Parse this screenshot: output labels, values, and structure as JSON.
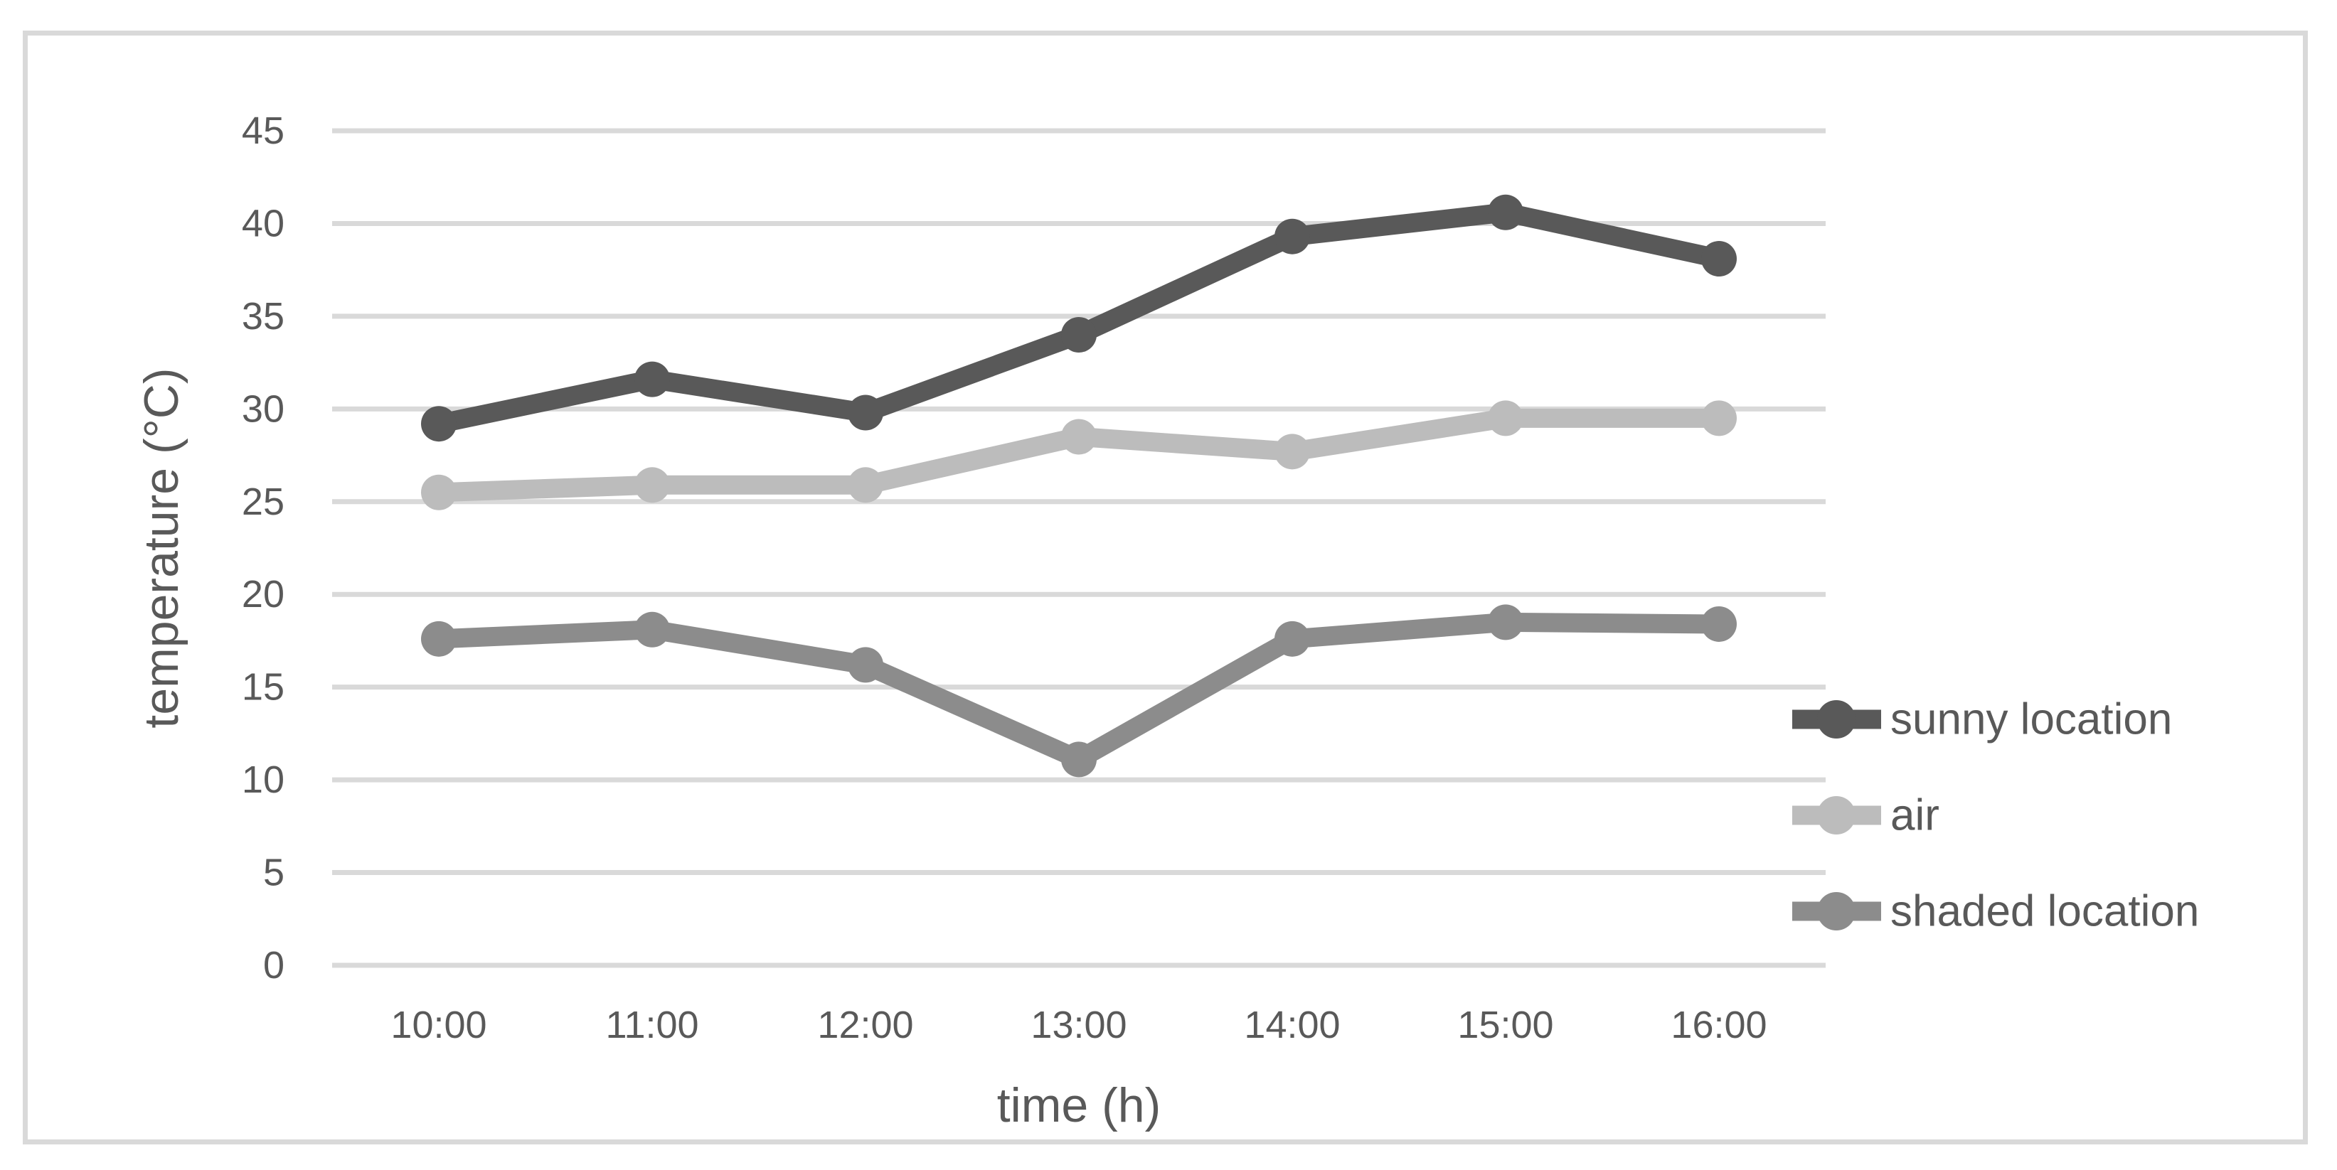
{
  "chart_data": {
    "type": "line",
    "title": "",
    "xlabel": "time (h)",
    "ylabel": "temperature (°C)",
    "categories": [
      "10:00",
      "11:00",
      "12:00",
      "13:00",
      "14:00",
      "15:00",
      "16:00"
    ],
    "series": [
      {
        "name": "sunny location",
        "color": "#595959",
        "values": [
          29.2,
          31.6,
          29.8,
          34.0,
          39.3,
          40.6,
          38.1
        ]
      },
      {
        "name": "air",
        "color": "#bcbcbc",
        "values": [
          25.5,
          25.9,
          25.9,
          28.5,
          27.7,
          29.5,
          29.5
        ]
      },
      {
        "name": "shaded location",
        "color": "#8c8c8c",
        "values": [
          17.6,
          18.1,
          16.2,
          11.1,
          17.6,
          18.5,
          18.4
        ]
      }
    ],
    "ylim": [
      0,
      45
    ],
    "ytick_step": 5,
    "ytick_labels": [
      "0",
      "5",
      "10",
      "15",
      "20",
      "25",
      "30",
      "35",
      "40",
      "45"
    ],
    "grid": true,
    "legend_position": "right",
    "marker": "circle",
    "colors": {
      "gridline": "#d9d9d9",
      "frame_border": "#d9d9d9",
      "tick_text": "#595959",
      "axis_title_text": "#595959",
      "legend_text": "#595959",
      "background": "#ffffff"
    }
  }
}
